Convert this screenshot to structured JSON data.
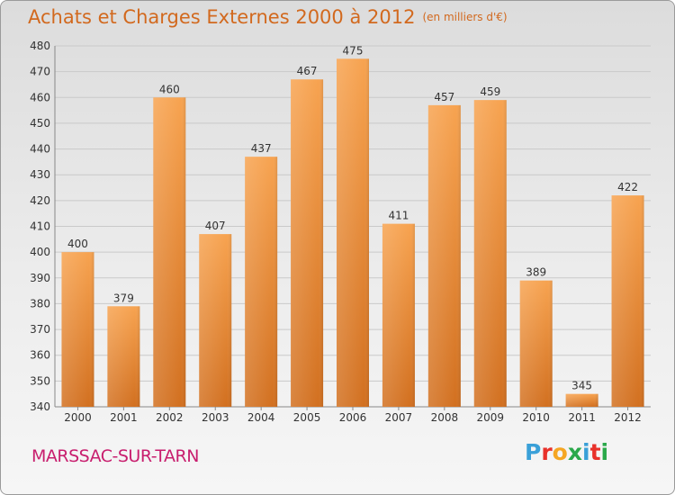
{
  "title": "Achats et Charges Externes 2000 à 2012",
  "subtitle": "(en milliers d'€)",
  "commune": "MARSSAC-SUR-TARN",
  "logo": {
    "text": "Proxiti",
    "colors": [
      "#3aa0d8",
      "#e8312a",
      "#f5a623",
      "#2aa84a",
      "#3aa0d8",
      "#e8312a",
      "#2aa84a"
    ]
  },
  "colors": {
    "title": "#d2691e",
    "commune": "#c81e6e",
    "bar_light": "#f7a350",
    "bar_dark": "#d27020",
    "grid": "#c9c9c9"
  },
  "chart_data": {
    "type": "bar",
    "title": "Achats et Charges Externes 2000 à 2012",
    "categories": [
      "2000",
      "2001",
      "2002",
      "2003",
      "2004",
      "2005",
      "2006",
      "2007",
      "2008",
      "2009",
      "2010",
      "2011",
      "2012"
    ],
    "values": [
      400,
      379,
      460,
      407,
      437,
      467,
      475,
      411,
      457,
      459,
      389,
      345,
      422
    ],
    "ylim": [
      340,
      480
    ],
    "yticks": [
      340,
      350,
      360,
      370,
      380,
      390,
      400,
      410,
      420,
      430,
      440,
      450,
      460,
      470,
      480
    ],
    "grid": true
  }
}
